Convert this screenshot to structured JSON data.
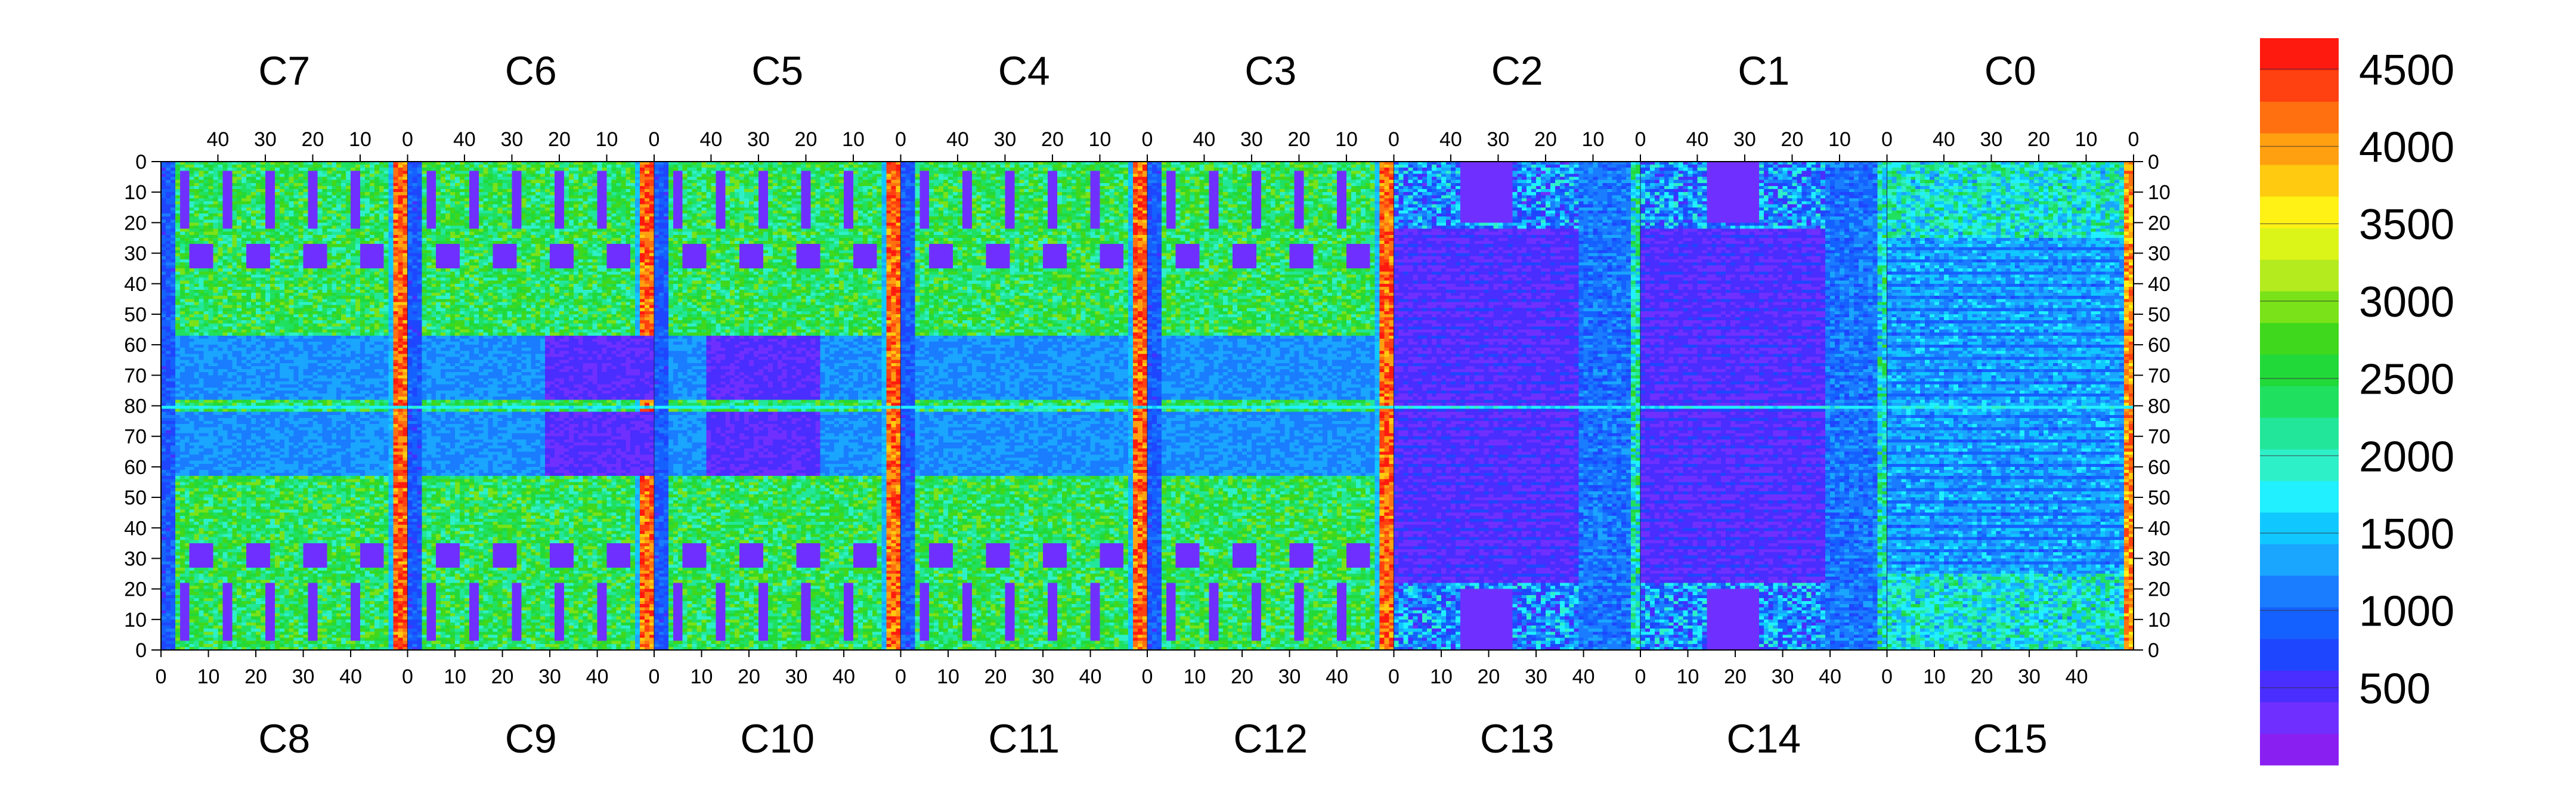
{
  "chart_data": {
    "type": "heatmap",
    "title": "",
    "xlabel": "",
    "ylabel": "",
    "grid": false,
    "top_chip_labels": [
      "C7",
      "C6",
      "C5",
      "C4",
      "C3",
      "C2",
      "C1",
      "C0"
    ],
    "bottom_chip_labels": [
      "C8",
      "C9",
      "C10",
      "C11",
      "C12",
      "C13",
      "C14",
      "C15"
    ],
    "top_axis_ticks": [
      "40",
      "30",
      "20",
      "10",
      "0"
    ],
    "top_axis_tick_values": [
      40,
      30,
      20,
      10,
      0
    ],
    "bottom_axis_ticks": [
      "0",
      "10",
      "20",
      "30",
      "40"
    ],
    "bottom_axis_tick_values": [
      0,
      10,
      20,
      30,
      40
    ],
    "columns_per_chip": 52,
    "rows_per_half": 80,
    "y_ticks_top_half": [
      "0",
      "10",
      "20",
      "30",
      "40",
      "50",
      "60",
      "70",
      "80"
    ],
    "y_ticks_bottom_half": [
      "70",
      "60",
      "50",
      "40",
      "30",
      "20",
      "10",
      "0"
    ],
    "y_tick_values_top_half": [
      0,
      10,
      20,
      30,
      40,
      50,
      60,
      70,
      80
    ],
    "y_tick_values_bottom_half": [
      70,
      60,
      50,
      40,
      30,
      20,
      10,
      0
    ],
    "z_range": [
      0,
      4700
    ],
    "colorbar": {
      "tick_labels": [
        "500",
        "1000",
        "1500",
        "2000",
        "2500",
        "3000",
        "3500",
        "4000",
        "4500"
      ],
      "tick_values": [
        500,
        1000,
        1500,
        2000,
        2500,
        3000,
        3500,
        4000,
        4500
      ],
      "band_colors": [
        "#8a1ff2",
        "#6f30ff",
        "#4a2dff",
        "#1f46ff",
        "#1561ff",
        "#1a7cff",
        "#1aa5ff",
        "#10c8ff",
        "#20f0ff",
        "#2ef0c8",
        "#22e79a",
        "#20e060",
        "#22d93a",
        "#3fd81c",
        "#7ae218",
        "#b4eb1e",
        "#dcf518",
        "#fff214",
        "#ffca10",
        "#ffa010",
        "#ff7010",
        "#ff4010",
        "#ff1a10"
      ]
    },
    "chip_summary": {
      "C0": "mixed_low_with_edge_hot_column",
      "C1": "low_striped",
      "C2": "low_striped",
      "C3": "high_structured",
      "C4": "high_structured",
      "C5": "high_structured",
      "C6": "high_structured",
      "C7": "high_structured",
      "C8": "high_structured",
      "C9": "high_structured",
      "C10": "high_structured",
      "C11": "high_structured",
      "C12": "high_structured",
      "C13": "low_striped",
      "C14": "low_striped",
      "C15": "mixed_low"
    }
  }
}
